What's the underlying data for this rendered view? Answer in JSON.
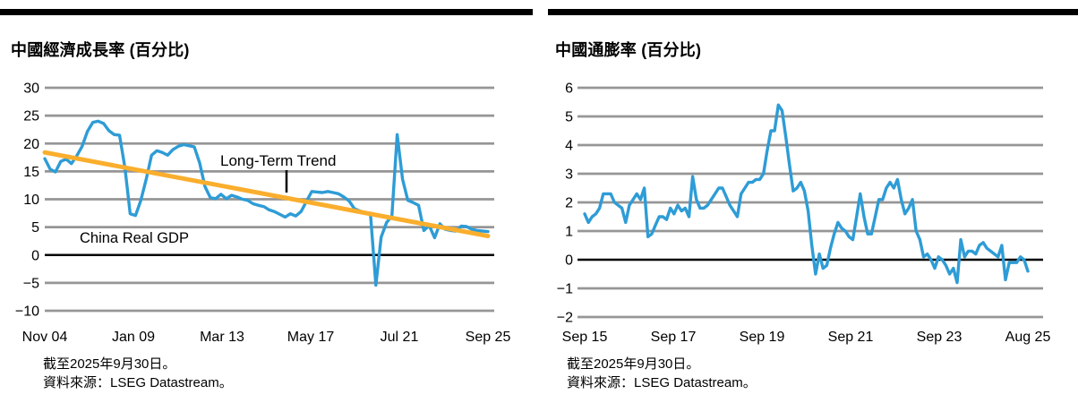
{
  "colors": {
    "series_blue": "#2E9CD6",
    "trend_orange": "#FAAE2D",
    "grid_gray": "#969696",
    "zero_axis": "#000000",
    "header_bar": "#000000"
  },
  "chart_data": [
    {
      "type": "line",
      "title": "中國經濟成長率 (百分比)",
      "x_ticks": [
        "Nov 04",
        "Jan 09",
        "Mar 13",
        "May 17",
        "Jul 21",
        "Sep 25"
      ],
      "y_ticks": [
        "30",
        "25",
        "20",
        "15",
        "10",
        "5",
        "0",
        "−5",
        "−10"
      ],
      "y_tick_values": [
        30,
        25,
        20,
        15,
        10,
        5,
        0,
        -5,
        -10
      ],
      "ylim": [
        -10,
        30
      ],
      "grid": true,
      "series": [
        {
          "name": "China Real GDP",
          "color": "#2E9CD6",
          "values": [
            17.3,
            15.4,
            14.9,
            16.8,
            17.2,
            16.4,
            17.8,
            19.5,
            22.2,
            23.8,
            24.0,
            23.6,
            22.3,
            21.6,
            21.5,
            15.7,
            7.4,
            7.1,
            9.8,
            13.6,
            17.9,
            18.7,
            18.4,
            17.9,
            18.9,
            19.5,
            19.8,
            19.6,
            19.4,
            16.5,
            12.3,
            10.3,
            10.1,
            10.9,
            10.1,
            10.7,
            10.4,
            10.0,
            9.8,
            9.2,
            8.9,
            8.7,
            8.1,
            7.8,
            7.3,
            6.8,
            7.4,
            7.0,
            7.8,
            9.6,
            11.4,
            11.3,
            11.2,
            11.4,
            11.2,
            11.0,
            10.4,
            9.7,
            8.3,
            7.9,
            7.6,
            7.3,
            -5.4,
            3.2,
            5.8,
            7.0,
            21.6,
            13.6,
            9.8,
            9.4,
            8.9,
            4.4,
            5.3,
            3.1,
            5.6,
            4.6,
            4.4,
            4.3,
            5.2,
            5.1,
            4.6,
            4.4,
            4.3,
            4.2
          ]
        },
        {
          "name": "Long-Term Trend",
          "color": "#FAAE2D",
          "trend_endpoints": [
            18.4,
            3.4
          ]
        }
      ],
      "annotations": [
        {
          "text": "Long-Term Trend"
        },
        {
          "text": "China Real GDP"
        }
      ],
      "footnotes": [
        "截至2025年9月30日。",
        "資料來源：LSEG Datastream。"
      ]
    },
    {
      "type": "line",
      "title": "中國通膨率 (百分比)",
      "x_ticks": [
        "Sep 15",
        "Sep 17",
        "Sep 19",
        "Sep 21",
        "Sep 23",
        "Aug 25"
      ],
      "y_ticks": [
        "6",
        "5",
        "4",
        "3",
        "2",
        "1",
        "0",
        "−1",
        "−2"
      ],
      "y_tick_values": [
        6,
        5,
        4,
        3,
        2,
        1,
        0,
        -1,
        -2
      ],
      "ylim": [
        -2,
        6
      ],
      "grid": true,
      "series": [
        {
          "color": "#2E9CD6",
          "values": [
            1.6,
            1.3,
            1.5,
            1.6,
            1.8,
            2.3,
            2.3,
            2.3,
            2.0,
            1.9,
            1.8,
            1.3,
            1.9,
            2.1,
            2.3,
            2.1,
            2.5,
            0.8,
            0.9,
            1.2,
            1.5,
            1.5,
            1.4,
            1.8,
            1.6,
            1.9,
            1.7,
            1.8,
            1.5,
            2.9,
            2.1,
            1.8,
            1.8,
            1.9,
            2.1,
            2.3,
            2.5,
            2.5,
            2.2,
            1.9,
            1.7,
            1.5,
            2.3,
            2.5,
            2.7,
            2.7,
            2.8,
            2.8,
            3.0,
            3.8,
            4.5,
            4.5,
            5.4,
            5.2,
            4.3,
            3.3,
            2.4,
            2.5,
            2.7,
            2.4,
            1.7,
            0.5,
            -0.5,
            0.2,
            -0.3,
            -0.2,
            0.4,
            0.9,
            1.3,
            1.1,
            1.0,
            0.8,
            0.7,
            1.5,
            2.3,
            1.5,
            0.9,
            0.9,
            1.5,
            2.1,
            2.1,
            2.5,
            2.7,
            2.5,
            2.8,
            2.1,
            1.6,
            1.8,
            2.1,
            1.0,
            0.7,
            0.1,
            0.2,
            0.0,
            -0.3,
            0.1,
            0.0,
            -0.2,
            -0.5,
            -0.3,
            -0.8,
            0.7,
            0.1,
            0.3,
            0.3,
            0.2,
            0.5,
            0.6,
            0.4,
            0.3,
            0.2,
            0.1,
            0.5,
            -0.7,
            -0.1,
            -0.1,
            -0.1,
            0.1,
            0.0,
            -0.4
          ]
        }
      ],
      "annotations": [],
      "footnotes": [
        "截至2025年9月30日。",
        "資料來源：LSEG Datastream。"
      ]
    }
  ]
}
